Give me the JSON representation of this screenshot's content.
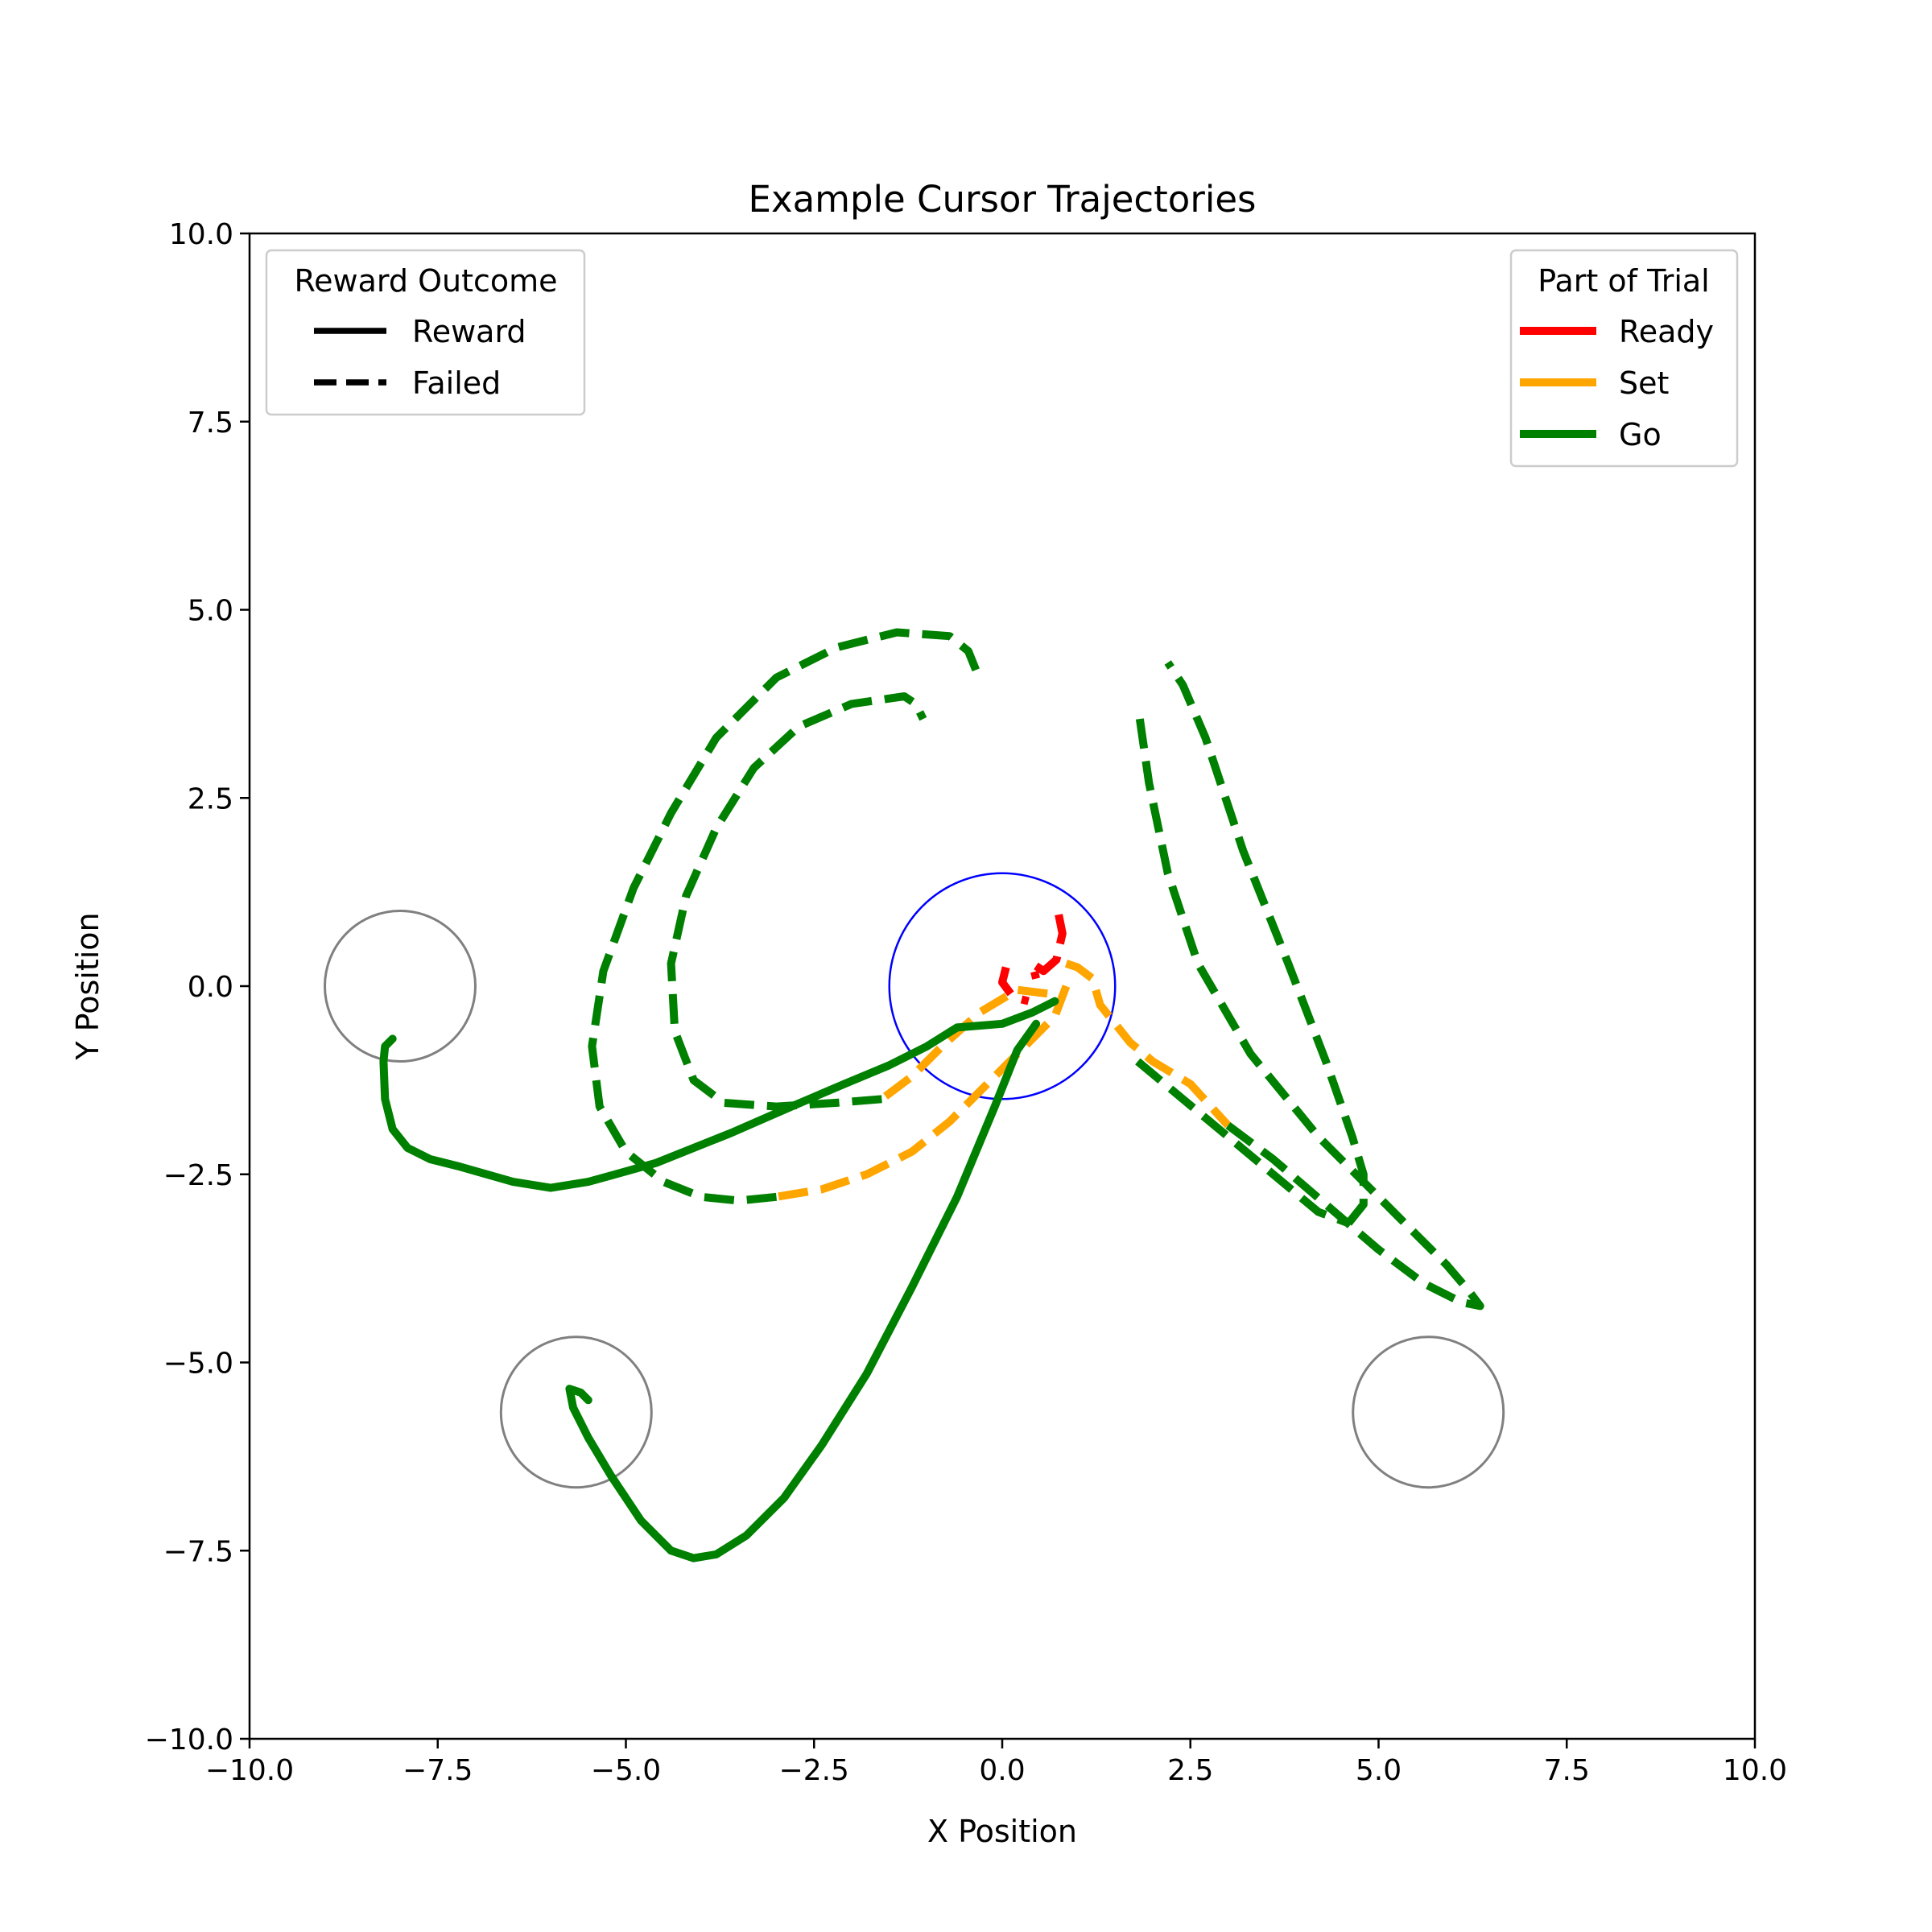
{
  "chart_data": {
    "type": "line",
    "title": "Example Cursor Trajectories",
    "xlabel": "X Position",
    "ylabel": "Y Position",
    "xlim": [
      -10,
      10
    ],
    "ylim": [
      -10,
      10
    ],
    "x_ticks": [
      -10,
      -7.5,
      -5,
      -2.5,
      0,
      2.5,
      5,
      7.5,
      10
    ],
    "y_ticks": [
      -10,
      -7.5,
      -5,
      -2.5,
      0,
      2.5,
      5,
      7.5,
      10
    ],
    "x_tick_labels": [
      "−10.0",
      "−7.5",
      "−5.0",
      "−2.5",
      "0.0",
      "2.5",
      "5.0",
      "7.5",
      "10.0"
    ],
    "y_tick_labels": [
      "−10.0",
      "−7.5",
      "−5.0",
      "−2.5",
      "0.0",
      "2.5",
      "5.0",
      "7.5",
      "10.0"
    ],
    "grid": false,
    "colors": {
      "Ready": "#ff0000",
      "Set": "#ffa500",
      "Go": "#008000",
      "start_circle": "#0000ff",
      "target_circle": "#808080"
    },
    "legends": [
      {
        "title": "Reward Outcome",
        "placement": "upper-left",
        "entries": [
          {
            "label": "Reward",
            "style": "solid",
            "color": "#000000"
          },
          {
            "label": "Failed",
            "style": "dashed",
            "color": "#000000"
          }
        ]
      },
      {
        "title": "Part of Trial",
        "placement": "upper-right",
        "entries": [
          {
            "label": "Ready",
            "style": "solid",
            "color": "#ff0000"
          },
          {
            "label": "Set",
            "style": "solid",
            "color": "#ffa500"
          },
          {
            "label": "Go",
            "style": "solid",
            "color": "#008000"
          }
        ]
      }
    ],
    "circles": [
      {
        "role": "start",
        "center": [
          0,
          0
        ],
        "radius": 1.5,
        "color": "#0000ff"
      },
      {
        "role": "target",
        "center": [
          -8,
          0
        ],
        "radius": 1.0,
        "color": "#808080"
      },
      {
        "role": "target",
        "center": [
          -5.66,
          -5.66
        ],
        "radius": 1.0,
        "color": "#808080"
      },
      {
        "role": "target",
        "center": [
          5.66,
          -5.66
        ],
        "radius": 1.0,
        "color": "#808080"
      }
    ],
    "series": [
      {
        "phase": "Ready",
        "outcome": "Failed",
        "color": "#ff0000",
        "dashed": true,
        "points": [
          [
            0.75,
            0.95
          ],
          [
            0.8,
            0.7
          ],
          [
            0.72,
            0.35
          ],
          [
            0.55,
            0.2
          ],
          [
            0.4,
            0.3
          ],
          [
            0.45,
            0.1
          ]
        ]
      },
      {
        "phase": "Ready",
        "outcome": "Failed",
        "color": "#ff0000",
        "dashed": true,
        "points": [
          [
            0.05,
            0.25
          ],
          [
            0.0,
            0.05
          ],
          [
            0.15,
            -0.15
          ],
          [
            0.35,
            -0.2
          ]
        ]
      },
      {
        "phase": "Set",
        "outcome": "Failed",
        "color": "#ffa500",
        "dashed": true,
        "points": [
          [
            0.85,
            0.3
          ],
          [
            1.0,
            0.25
          ],
          [
            1.2,
            0.1
          ],
          [
            1.3,
            -0.25
          ],
          [
            1.7,
            -0.75
          ],
          [
            2.0,
            -1.0
          ],
          [
            2.5,
            -1.3
          ],
          [
            3.0,
            -1.85
          ]
        ]
      },
      {
        "phase": "Set",
        "outcome": "Failed",
        "color": "#ffa500",
        "dashed": true,
        "points": [
          [
            0.85,
            0.0
          ],
          [
            0.7,
            -0.4
          ],
          [
            0.3,
            -0.8
          ],
          [
            -0.2,
            -1.3
          ],
          [
            -0.7,
            -1.8
          ],
          [
            -1.2,
            -2.2
          ],
          [
            -1.8,
            -2.5
          ],
          [
            -2.4,
            -2.7
          ],
          [
            -3.0,
            -2.8
          ]
        ]
      },
      {
        "phase": "Set",
        "outcome": "Failed",
        "color": "#ffa500",
        "dashed": true,
        "points": [
          [
            0.6,
            -0.1
          ],
          [
            0.2,
            -0.05
          ],
          [
            -0.3,
            -0.35
          ],
          [
            -0.8,
            -0.8
          ],
          [
            -1.2,
            -1.2
          ],
          [
            -1.6,
            -1.5
          ]
        ]
      },
      {
        "phase": "Go",
        "outcome": "Failed",
        "color": "#008000",
        "dashed": true,
        "points": [
          [
            -3.0,
            -2.8
          ],
          [
            -3.5,
            -2.85
          ],
          [
            -4.0,
            -2.8
          ],
          [
            -4.5,
            -2.6
          ],
          [
            -5.0,
            -2.2
          ],
          [
            -5.35,
            -1.6
          ],
          [
            -5.45,
            -0.8
          ],
          [
            -5.3,
            0.2
          ],
          [
            -4.9,
            1.3
          ],
          [
            -4.4,
            2.3
          ],
          [
            -3.8,
            3.3
          ],
          [
            -3.0,
            4.1
          ],
          [
            -2.2,
            4.5
          ],
          [
            -1.4,
            4.7
          ],
          [
            -0.7,
            4.65
          ],
          [
            -0.45,
            4.45
          ],
          [
            -0.35,
            4.2
          ]
        ]
      },
      {
        "phase": "Go",
        "outcome": "Failed",
        "color": "#008000",
        "dashed": true,
        "points": [
          [
            -1.6,
            -1.5
          ],
          [
            -2.2,
            -1.55
          ],
          [
            -3.0,
            -1.6
          ],
          [
            -3.7,
            -1.55
          ],
          [
            -4.1,
            -1.25
          ],
          [
            -4.35,
            -0.6
          ],
          [
            -4.4,
            0.3
          ],
          [
            -4.2,
            1.2
          ],
          [
            -3.8,
            2.1
          ],
          [
            -3.3,
            2.9
          ],
          [
            -2.7,
            3.45
          ],
          [
            -2.0,
            3.75
          ],
          [
            -1.3,
            3.85
          ],
          [
            -1.15,
            3.75
          ],
          [
            -1.05,
            3.55
          ]
        ]
      },
      {
        "phase": "Go",
        "outcome": "Failed",
        "color": "#008000",
        "dashed": true,
        "points": [
          [
            1.8,
            -1.0
          ],
          [
            2.4,
            -1.5
          ],
          [
            3.0,
            -2.0
          ],
          [
            3.6,
            -2.5
          ],
          [
            4.2,
            -3.0
          ],
          [
            4.6,
            -3.15
          ]
        ]
      },
      {
        "phase": "Go",
        "outcome": "Failed",
        "color": "#008000",
        "dashed": true,
        "points": [
          [
            3.0,
            -1.85
          ],
          [
            3.6,
            -2.3
          ],
          [
            4.3,
            -2.9
          ],
          [
            5.0,
            -3.5
          ],
          [
            5.6,
            -3.95
          ],
          [
            6.1,
            -4.2
          ],
          [
            6.35,
            -4.25
          ],
          [
            6.2,
            -4.05
          ],
          [
            5.9,
            -3.7
          ],
          [
            5.3,
            -3.1
          ],
          [
            4.8,
            -2.6
          ],
          [
            4.2,
            -2.0
          ],
          [
            3.3,
            -0.9
          ],
          [
            2.6,
            0.3
          ],
          [
            2.2,
            1.5
          ],
          [
            1.95,
            2.7
          ],
          [
            1.82,
            3.6
          ]
        ]
      },
      {
        "phase": "Go",
        "outcome": "Failed",
        "color": "#008000",
        "dashed": true,
        "points": [
          [
            4.6,
            -3.15
          ],
          [
            4.8,
            -2.9
          ],
          [
            4.8,
            -2.5
          ],
          [
            4.65,
            -2.0
          ],
          [
            4.3,
            -1.0
          ],
          [
            3.8,
            0.3
          ],
          [
            3.2,
            1.8
          ],
          [
            2.7,
            3.3
          ],
          [
            2.4,
            4.0
          ],
          [
            2.2,
            4.3
          ]
        ]
      },
      {
        "phase": "Go",
        "outcome": "Reward",
        "color": "#008000",
        "dashed": false,
        "points": [
          [
            -0.6,
            -0.55
          ],
          [
            -1.0,
            -0.8
          ],
          [
            -1.5,
            -1.05
          ],
          [
            -2.1,
            -1.3
          ],
          [
            -2.8,
            -1.6
          ],
          [
            -3.6,
            -1.95
          ],
          [
            -4.6,
            -2.35
          ],
          [
            -5.5,
            -2.6
          ],
          [
            -6.0,
            -2.68
          ],
          [
            -6.5,
            -2.6
          ],
          [
            -7.2,
            -2.4
          ],
          [
            -7.6,
            -2.3
          ],
          [
            -7.9,
            -2.15
          ],
          [
            -8.1,
            -1.9
          ],
          [
            -8.2,
            -1.5
          ],
          [
            -8.22,
            -1.0
          ],
          [
            -8.2,
            -0.8
          ],
          [
            -8.1,
            -0.7
          ]
        ]
      },
      {
        "phase": "Go",
        "outcome": "Reward",
        "color": "#008000",
        "dashed": false,
        "points": [
          [
            0.45,
            -0.5
          ],
          [
            0.2,
            -0.85
          ],
          [
            -0.1,
            -1.6
          ],
          [
            -0.6,
            -2.8
          ],
          [
            -1.2,
            -4.0
          ],
          [
            -1.8,
            -5.15
          ],
          [
            -2.4,
            -6.1
          ],
          [
            -2.9,
            -6.8
          ],
          [
            -3.4,
            -7.3
          ],
          [
            -3.8,
            -7.55
          ],
          [
            -4.1,
            -7.6
          ],
          [
            -4.4,
            -7.5
          ],
          [
            -4.8,
            -7.1
          ],
          [
            -5.2,
            -6.5
          ],
          [
            -5.5,
            -6.0
          ],
          [
            -5.7,
            -5.6
          ],
          [
            -5.75,
            -5.35
          ],
          [
            -5.6,
            -5.4
          ],
          [
            -5.5,
            -5.5
          ]
        ]
      },
      {
        "phase": "Go",
        "outcome": "Reward",
        "color": "#008000",
        "dashed": false,
        "points": [
          [
            0.7,
            -0.2
          ],
          [
            0.4,
            -0.35
          ],
          [
            0.0,
            -0.5
          ],
          [
            -0.6,
            -0.55
          ]
        ]
      }
    ]
  }
}
